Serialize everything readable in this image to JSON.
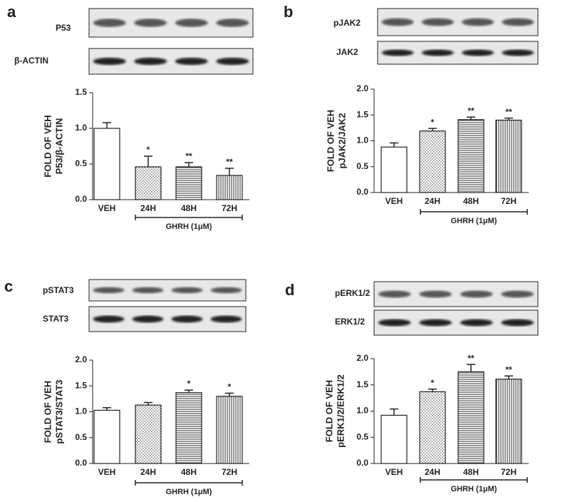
{
  "chart_data": [
    {
      "type": "bar",
      "panel": "a",
      "blots": [
        "P53",
        "β-ACTIN"
      ],
      "ylabel": [
        "FOLD OF VEH",
        "P53/β-ACTIN"
      ],
      "categories": [
        "VEH",
        "24H",
        "48H",
        "72H"
      ],
      "values": [
        1.0,
        0.46,
        0.46,
        0.34
      ],
      "errors": [
        0.08,
        0.15,
        0.06,
        0.1
      ],
      "annotations": [
        null,
        "*",
        "**",
        "**"
      ],
      "group_label": "GHRH (1μM)",
      "patterns": [
        "none",
        "dots",
        "hlines",
        "vlines"
      ],
      "ylim": [
        0,
        1.5
      ],
      "yticks": [
        {
          "value": 0,
          "label": "0.0"
        },
        {
          "value": 0.5,
          "label": "0.5"
        },
        {
          "value": 1,
          "label": "1.0"
        },
        {
          "value": 1.5,
          "label": "1.5"
        }
      ]
    },
    {
      "type": "bar",
      "panel": "b",
      "blots": [
        "pJAK2",
        "JAK2"
      ],
      "ylabel": [
        "FOLD OF VEH",
        "pJAK2/JAK2"
      ],
      "categories": [
        "VEH",
        "24H",
        "48H",
        "72H"
      ],
      "values": [
        0.88,
        1.19,
        1.41,
        1.4
      ],
      "errors": [
        0.08,
        0.05,
        0.05,
        0.04
      ],
      "annotations": [
        null,
        "*",
        "**",
        "**"
      ],
      "group_label": "GHRH (1μM)",
      "patterns": [
        "none",
        "dots",
        "hlines",
        "vlines"
      ],
      "ylim": [
        0,
        2
      ],
      "yticks": [
        {
          "value": 0,
          "label": "0.0"
        },
        {
          "value": 0.5,
          "label": "0.5"
        },
        {
          "value": 1,
          "label": "1.0"
        },
        {
          "value": 1.5,
          "label": "1.5"
        },
        {
          "value": 2,
          "label": "2.0"
        }
      ]
    },
    {
      "type": "bar",
      "panel": "c",
      "blots": [
        "pSTAT3",
        "STAT3"
      ],
      "ylabel": [
        "FOLD OF VEH",
        "pSTAT3/STAT3"
      ],
      "categories": [
        "VEH",
        "24H",
        "48H",
        "72H"
      ],
      "values": [
        1.03,
        1.13,
        1.37,
        1.3
      ],
      "errors": [
        0.05,
        0.05,
        0.05,
        0.06
      ],
      "annotations": [
        null,
        null,
        "*",
        "*"
      ],
      "group_label": "GHRH (1μM)",
      "patterns": [
        "none",
        "dots",
        "hlines",
        "vlines"
      ],
      "ylim": [
        0,
        2
      ],
      "yticks": [
        {
          "value": 0,
          "label": "0.0"
        },
        {
          "value": 0.5,
          "label": "0.5"
        },
        {
          "value": 1,
          "label": "1.0"
        },
        {
          "value": 1.5,
          "label": "1.5"
        },
        {
          "value": 2,
          "label": "2.0"
        }
      ]
    },
    {
      "type": "bar",
      "panel": "d",
      "blots": [
        "pERK1/2",
        "ERK1/2"
      ],
      "ylabel": [
        "FOLD OF VEH",
        "pERK1/2/ERK1/2"
      ],
      "categories": [
        "VEH",
        "24H",
        "48H",
        "72H"
      ],
      "values": [
        0.92,
        1.37,
        1.75,
        1.61
      ],
      "errors": [
        0.12,
        0.05,
        0.14,
        0.06
      ],
      "annotations": [
        null,
        "*",
        "**",
        "**"
      ],
      "group_label": "GHRH (1μM)",
      "patterns": [
        "none",
        "dots",
        "hlines",
        "vlines"
      ],
      "ylim": [
        0,
        2
      ],
      "yticks": [
        {
          "value": 0,
          "label": "0.0"
        },
        {
          "value": 0.5,
          "label": "0.5"
        },
        {
          "value": 1,
          "label": "1.0"
        },
        {
          "value": 1.5,
          "label": "1.5"
        },
        {
          "value": 2,
          "label": "2.0"
        }
      ]
    }
  ]
}
